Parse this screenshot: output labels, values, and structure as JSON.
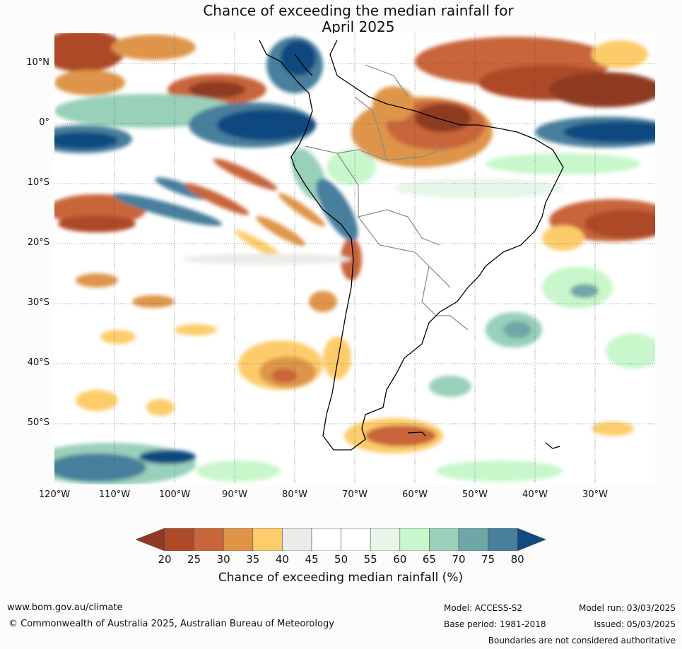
{
  "title_line1": "Chance of exceeding the median rainfall for",
  "title_line2": "April 2025",
  "lat_labels": [
    "10°N",
    "0°",
    "10°S",
    "20°S",
    "30°S",
    "40°S",
    "50°S"
  ],
  "lon_labels": [
    "120°W",
    "110°W",
    "100°W",
    "90°W",
    "80°W",
    "70°W",
    "60°W",
    "50°W",
    "40°W",
    "30°W"
  ],
  "colorbar": {
    "label": "Chance of exceeding median rainfall (%)",
    "ticks": [
      "20",
      "25",
      "30",
      "35",
      "40",
      "45",
      "50",
      "55",
      "60",
      "65",
      "70",
      "75",
      "80"
    ],
    "colors": [
      "#8e3a22",
      "#ad4a27",
      "#c8653a",
      "#de9548",
      "#fdcc6b",
      "#ecebe7",
      "#ffffff",
      "#ffffff",
      "#e8f5e9",
      "#c8f7cb",
      "#98d0b9",
      "#6fa6a6",
      "#477f9c",
      "#0f4a80"
    ]
  },
  "footer": {
    "url": "www.bom.gov.au/climate",
    "copyright": "© Commonwealth of Australia 2025, Australian Bureau of Meteorology",
    "model": "Model: ACCESS-S2",
    "base_period": "Base period: 1981-2018",
    "model_run": "Model run: 03/03/2025",
    "issued": "Issued: 05/03/2025",
    "disclaimer": "Boundaries are not considered authoritative"
  }
}
